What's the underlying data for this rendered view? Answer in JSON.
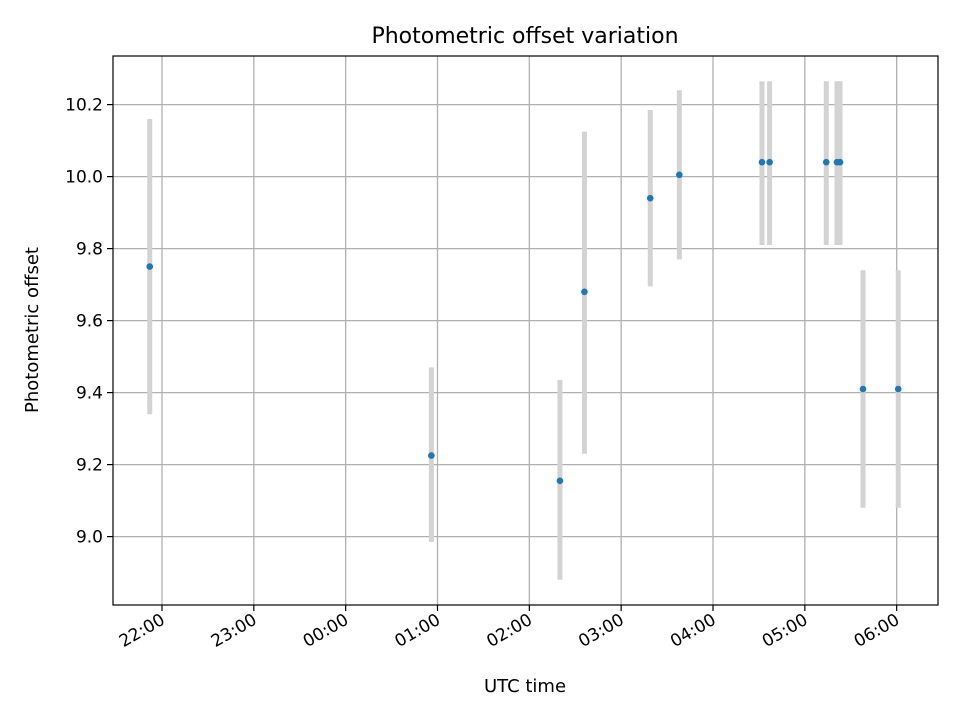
{
  "chart_data": {
    "type": "scatter",
    "title": "Photometric offset variation",
    "xlabel": "UTC time",
    "ylabel": "Photometric offset",
    "x_axis_kind": "time (UTC, spanning two days)",
    "xlim": [
      "21:28",
      "06:27"
    ],
    "ylim": [
      8.81,
      10.335
    ],
    "x_ticks": [
      "22:00",
      "23:00",
      "00:00",
      "01:00",
      "02:00",
      "03:00",
      "04:00",
      "05:00",
      "06:00"
    ],
    "y_ticks": [
      "9.0",
      "9.2",
      "9.4",
      "9.6",
      "9.8",
      "10.0",
      "10.2"
    ],
    "grid": true,
    "legend": "none",
    "colors": {
      "marker": "#1f77b4",
      "errorbar": "#d3d3d3",
      "grid": "#b0b0b0"
    },
    "points": [
      {
        "t": "21:52",
        "y": 9.75,
        "yerr_low": 9.34,
        "yerr_high": 10.16
      },
      {
        "t": "00:56",
        "y": 9.225,
        "yerr_low": 8.985,
        "yerr_high": 9.47
      },
      {
        "t": "02:20",
        "y": 9.155,
        "yerr_low": 8.88,
        "yerr_high": 9.435
      },
      {
        "t": "02:36",
        "y": 9.68,
        "yerr_low": 9.23,
        "yerr_high": 10.125
      },
      {
        "t": "03:19",
        "y": 9.94,
        "yerr_low": 9.695,
        "yerr_high": 10.185
      },
      {
        "t": "03:38",
        "y": 10.005,
        "yerr_low": 9.77,
        "yerr_high": 10.24
      },
      {
        "t": "04:32",
        "y": 10.04,
        "yerr_low": 9.81,
        "yerr_high": 10.265
      },
      {
        "t": "04:37",
        "y": 10.04,
        "yerr_low": 9.81,
        "yerr_high": 10.265
      },
      {
        "t": "05:14",
        "y": 10.04,
        "yerr_low": 9.81,
        "yerr_high": 10.265
      },
      {
        "t": "05:21",
        "y": 10.04,
        "yerr_low": 9.81,
        "yerr_high": 10.265
      },
      {
        "t": "05:23",
        "y": 10.04,
        "yerr_low": 9.81,
        "yerr_high": 10.265
      },
      {
        "t": "05:38",
        "y": 9.41,
        "yerr_low": 9.08,
        "yerr_high": 9.74
      },
      {
        "t": "06:01",
        "y": 9.41,
        "yerr_low": 9.08,
        "yerr_high": 9.74
      }
    ]
  }
}
